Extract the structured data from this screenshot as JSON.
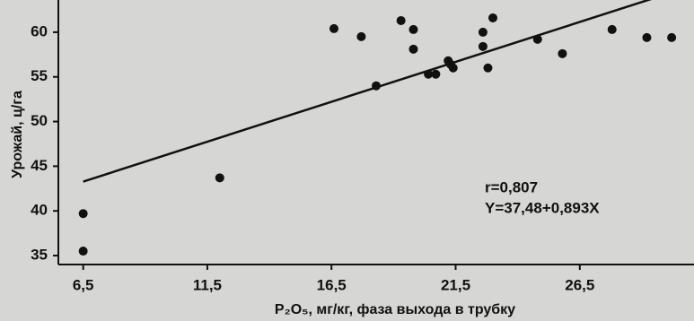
{
  "chart_data": {
    "type": "scatter",
    "x_label": "P₂O₅, мг/кг, фаза выхода в трубку",
    "y_label": "Урожай, ц/га",
    "annotations": [
      "r=0,807",
      "Y=37,48+0,893X"
    ],
    "x": [
      6.5,
      6.5,
      12.0,
      16.6,
      17.7,
      18.3,
      19.3,
      19.8,
      19.8,
      20.4,
      20.7,
      21.2,
      21.3,
      21.4,
      22.6,
      23.0,
      22.6,
      22.8,
      24.8,
      25.8,
      27.8,
      29.2,
      30.2
    ],
    "values": [
      39.7,
      35.5,
      43.7,
      60.4,
      59.5,
      54.0,
      61.3,
      60.3,
      58.1,
      55.3,
      55.3,
      56.8,
      56.4,
      56.0,
      60.0,
      61.6,
      58.4,
      56.0,
      59.2,
      57.6,
      60.3,
      59.4,
      59.4
    ],
    "color": "#111111",
    "fit_line": {
      "x": [
        6.5,
        30.2
      ],
      "values": [
        43.28,
        64.45
      ]
    },
    "xlim": [
      5.5,
      31.1
    ],
    "ylim": [
      34,
      62.8
    ],
    "xticks": [
      {
        "value": 6.5,
        "label": "6,5"
      },
      {
        "value": 11.5,
        "label": "11,5"
      },
      {
        "value": 16.5,
        "label": "16,5"
      },
      {
        "value": 21.5,
        "label": "21,5"
      },
      {
        "value": 26.5,
        "label": "26,5"
      }
    ],
    "yticks": [
      35,
      40,
      45,
      50,
      55,
      60
    ],
    "grid": false
  }
}
